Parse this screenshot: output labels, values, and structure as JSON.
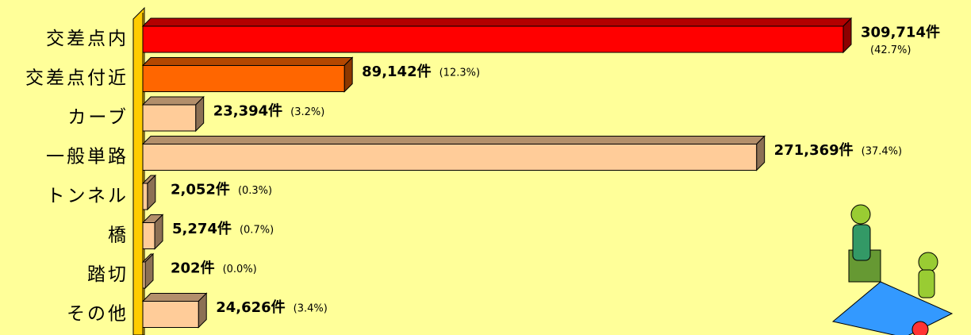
{
  "chart_data": {
    "type": "bar3d-horizontal",
    "categories": [
      "交差点内",
      "交差点付近",
      "カーブ",
      "一般単路",
      "トンネル",
      "橋",
      "踏切",
      "その他"
    ],
    "values": [
      309714,
      89142,
      23394,
      271369,
      2052,
      5274,
      202,
      24626
    ],
    "value_labels": [
      "309,714件",
      "89,142件",
      "23,394件",
      "271,369件",
      "2,052件",
      "5,274件",
      "202件",
      "24,626件"
    ],
    "share_labels": [
      "(42.7%)",
      "(12.3%)",
      "(3.2%)",
      "(37.4%)",
      "(0.3%)",
      "(0.7%)",
      "(0.0%)",
      "(3.4%)"
    ],
    "colors": [
      "#ff0000",
      "#ff6600",
      "#ffcc99",
      "#ffcc99",
      "#ffcc99",
      "#ffcc99",
      "#ffcc99",
      "#ffcc99"
    ]
  }
}
